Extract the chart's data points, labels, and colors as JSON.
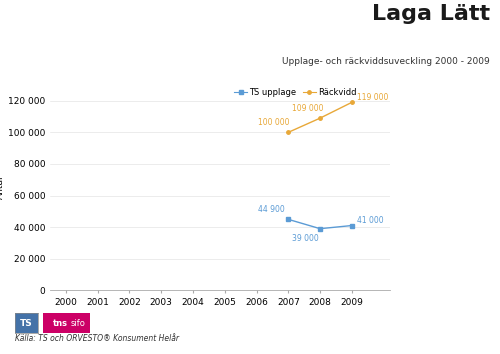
{
  "title": "Laga Lätt",
  "subtitle": "Upplage- och räckviddsuveckling 2000 - 2009",
  "ylabel": "Antal",
  "years_blue": [
    2007,
    2008,
    2009
  ],
  "values_blue": [
    44900,
    39000,
    41000
  ],
  "labels_blue": [
    "44 900",
    "39 000",
    "41 000"
  ],
  "years_orange": [
    2007,
    2008,
    2009
  ],
  "values_orange": [
    100000,
    109000,
    119000
  ],
  "labels_orange": [
    "100 000",
    "109 000",
    "119 000"
  ],
  "color_blue": "#5b9bd5",
  "color_orange": "#e8a838",
  "legend_blue": "TS upplage",
  "legend_orange": "Räckvidd",
  "xlim": [
    1999.5,
    2010.2
  ],
  "ylim": [
    0,
    130000
  ],
  "yticks": [
    0,
    20000,
    40000,
    60000,
    80000,
    100000,
    120000
  ],
  "xticks": [
    2000,
    2001,
    2002,
    2003,
    2004,
    2005,
    2006,
    2007,
    2008,
    2009
  ],
  "source_text": "Källa: TS och ORVESTO® Konsument Helår",
  "bg_color": "#ffffff",
  "title_fontsize": 16,
  "subtitle_fontsize": 6.5,
  "label_fontsize": 5.5,
  "axis_fontsize": 6.5,
  "legend_fontsize": 6
}
